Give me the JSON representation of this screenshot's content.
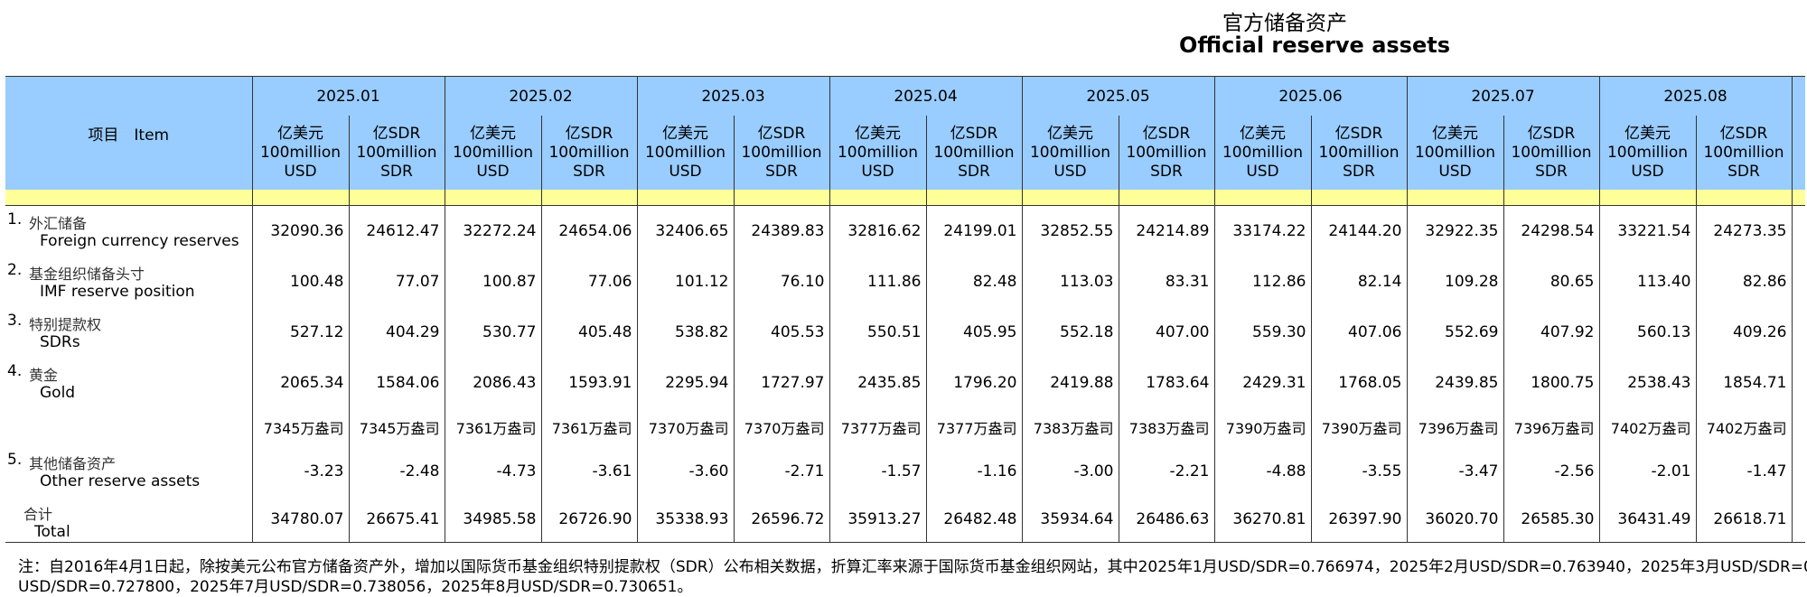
{
  "title": {
    "cn": "官方储备资产",
    "en": "Official reserve assets"
  },
  "header": {
    "item": "项目　Item",
    "unit_usd": [
      "亿美元",
      "100million",
      "USD"
    ],
    "unit_sdr": [
      "亿SDR",
      "100million",
      "SDR"
    ],
    "months": [
      "2025.01",
      "2025.02",
      "2025.03",
      "2025.04",
      "2025.05",
      "2025.06",
      "2025.07",
      "2025.08"
    ]
  },
  "rows": [
    {
      "idx": "1.",
      "cn": "外汇储备",
      "en": "Foreign currency reserves",
      "values": [
        "32090.36",
        "24612.47",
        "32272.24",
        "24654.06",
        "32406.65",
        "24389.83",
        "32816.62",
        "24199.01",
        "32852.55",
        "24214.89",
        "33174.22",
        "24144.20",
        "32922.35",
        "24298.54",
        "33221.54",
        "24273.35"
      ]
    },
    {
      "idx": "2.",
      "cn": "基金组织储备头寸",
      "en": "IMF reserve position",
      "values": [
        "100.48",
        "77.07",
        "100.87",
        "77.06",
        "101.12",
        "76.10",
        "111.86",
        "82.48",
        "113.03",
        "83.31",
        "112.86",
        "82.14",
        "109.28",
        "80.65",
        "113.40",
        "82.86"
      ]
    },
    {
      "idx": "3.",
      "cn": "特别提款权",
      "en": "SDRs",
      "values": [
        "527.12",
        "404.29",
        "530.77",
        "405.48",
        "538.82",
        "405.53",
        "550.51",
        "405.95",
        "552.18",
        "407.00",
        "559.30",
        "407.06",
        "552.69",
        "407.92",
        "560.13",
        "409.26"
      ]
    },
    {
      "idx": "4.",
      "cn": "黄金",
      "en": "Gold",
      "values": [
        "2065.34",
        "1584.06",
        "2086.43",
        "1593.91",
        "2295.94",
        "1727.97",
        "2435.85",
        "1796.20",
        "2419.88",
        "1783.64",
        "2429.31",
        "1768.05",
        "2439.85",
        "1800.75",
        "2538.43",
        "1854.71"
      ]
    },
    {
      "idx": "",
      "cn": "",
      "en": "",
      "values": [
        "7345万盎司",
        "7345万盎司",
        "7361万盎司",
        "7361万盎司",
        "7370万盎司",
        "7370万盎司",
        "7377万盎司",
        "7377万盎司",
        "7383万盎司",
        "7383万盎司",
        "7390万盎司",
        "7390万盎司",
        "7396万盎司",
        "7396万盎司",
        "7402万盎司",
        "7402万盎司"
      ]
    },
    {
      "idx": "5.",
      "cn": "其他储备资产",
      "en": "Other reserve assets",
      "values": [
        "-3.23",
        "-2.48",
        "-4.73",
        "-3.61",
        "-3.60",
        "-2.71",
        "-1.57",
        "-1.16",
        "-3.00",
        "-2.21",
        "-4.88",
        "-3.55",
        "-3.47",
        "-2.56",
        "-2.01",
        "-1.47"
      ]
    },
    {
      "idx": "",
      "cn": "合计",
      "en": "Total",
      "values": [
        "34780.07",
        "26675.41",
        "34985.58",
        "26726.90",
        "35338.93",
        "26596.72",
        "35913.27",
        "26482.48",
        "35934.64",
        "26486.63",
        "36270.81",
        "26397.90",
        "36020.70",
        "26585.30",
        "36431.49",
        "26618.71"
      ]
    }
  ],
  "note": {
    "line1": "注：自2016年4月1日起，除按美元公布官方储备资产外，增加以国际货币基金组织特别提款权（SDR）公布相关数据，折算汇率来源于国际货币基金组织网站，其中2025年1月USD/SDR=0.766974，2025年2月USD/SDR=0.763940，2025年3月USD/SDR=0",
    "line2": "USD/SDR=0.727800，2025年7月USD/SDR=0.738056，2025年8月USD/SDR=0.730651。"
  }
}
